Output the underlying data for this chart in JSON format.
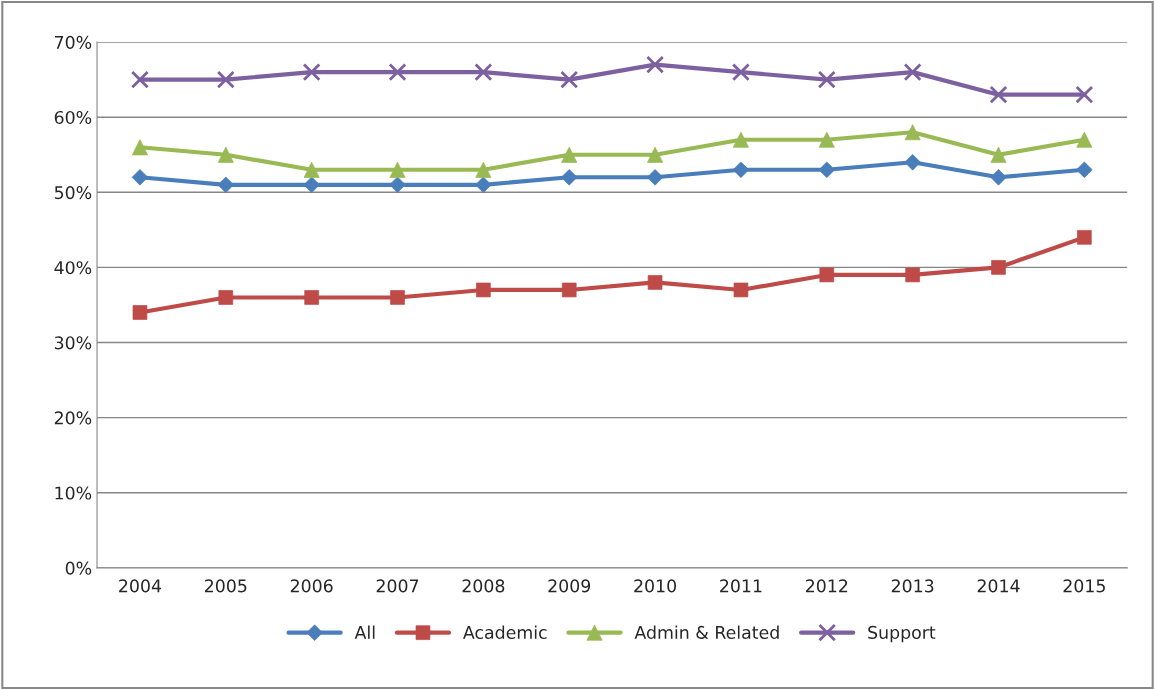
{
  "chart_data": {
    "type": "line",
    "categories": [
      "2004",
      "2005",
      "2006",
      "2007",
      "2008",
      "2009",
      "2010",
      "2011",
      "2012",
      "2013",
      "2014",
      "2015"
    ],
    "series": [
      {
        "name": "All",
        "color": "#4a7ebb",
        "marker": "diamond",
        "values": [
          52,
          51,
          51,
          51,
          51,
          52,
          52,
          53,
          53,
          54,
          52,
          53
        ]
      },
      {
        "name": "Academic",
        "color": "#be4b48",
        "marker": "square",
        "values": [
          34,
          36,
          36,
          36,
          37,
          37,
          38,
          37,
          39,
          39,
          40,
          44
        ]
      },
      {
        "name": "Admin & Related",
        "color": "#98b954",
        "marker": "triangle",
        "values": [
          56,
          55,
          53,
          53,
          53,
          55,
          55,
          57,
          57,
          58,
          55,
          57
        ]
      },
      {
        "name": "Support",
        "color": "#7d60a0",
        "marker": "cross",
        "values": [
          65,
          65,
          66,
          66,
          66,
          65,
          67,
          66,
          65,
          66,
          63,
          63
        ]
      }
    ],
    "ylim": [
      0,
      70
    ],
    "yticks": [
      {
        "value": 0,
        "label": "0%"
      },
      {
        "value": 10,
        "label": "10%"
      },
      {
        "value": 20,
        "label": "20%"
      },
      {
        "value": 30,
        "label": "30%"
      },
      {
        "value": 40,
        "label": "40%"
      },
      {
        "value": 50,
        "label": "50%"
      },
      {
        "value": 60,
        "label": "60%"
      },
      {
        "value": 70,
        "label": "70%"
      }
    ],
    "grid": "y",
    "legend": "bottom"
  }
}
